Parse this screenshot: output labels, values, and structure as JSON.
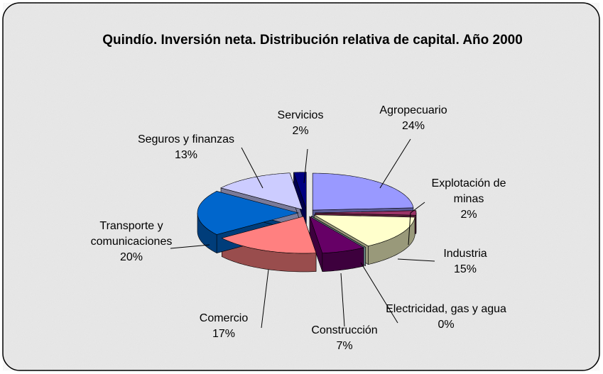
{
  "chart_data": {
    "type": "pie3d",
    "title": "Quindío. Inversión neta. Distribución relativa de capital. Año 2000",
    "categories": [
      "Agropecuario",
      "Explotación de minas",
      "Industria",
      "Electricidad, gas y agua",
      "Construcción",
      "Comercio",
      "Transporte y comunicaciones",
      "Seguros y finanzas",
      "Servicios"
    ],
    "values": [
      24,
      2,
      15,
      0,
      7,
      17,
      20,
      13,
      2
    ],
    "value_labels": [
      "24%",
      "2%",
      "15%",
      "0%",
      "7%",
      "17%",
      "20%",
      "13%",
      "2%"
    ],
    "colors": [
      "#9999ff",
      "#993366",
      "#ffffcc",
      "#ccffff",
      "#660066",
      "#ff8080",
      "#0066cc",
      "#ccccff",
      "#000080"
    ]
  }
}
